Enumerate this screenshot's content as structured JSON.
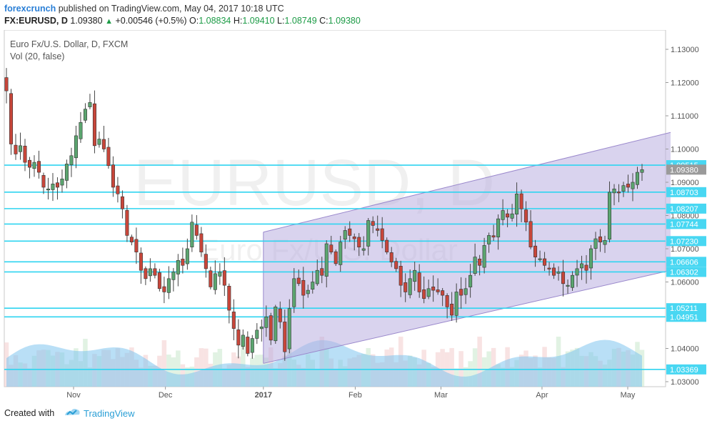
{
  "header": {
    "brand": "forexcrunch",
    "published": "published on TradingView.com, May 04, 2017 10:18 UTC",
    "symbol": "FX:EURUSD, D",
    "last": "1.09380",
    "change": "+0.00546 (+0.5%)",
    "o_label": "O:",
    "o_val": "1.08834",
    "h_label": "H:",
    "h_val": "1.09410",
    "l_label": "L:",
    "l_val": "1.08749",
    "c_label": "C:",
    "c_val": "1.09380"
  },
  "footer": {
    "created": "Created with",
    "brand": "TradingView"
  },
  "colors": {
    "up_body": "#5ba56f",
    "down_body": "#c8463a",
    "level_line": "#2fd4f0",
    "channel_fill": "#b9aee0",
    "channel_line": "#9a88cc",
    "volume": "#7fc4ee",
    "price_badge": "#9a9a9a",
    "level_badge": "#48d7f2"
  },
  "chart_data": {
    "type": "candlestick",
    "title": "Euro Fx/U.S. Dollar, D, FXCM",
    "subtitle": "Vol (20, false)",
    "watermark": "EURUSD, D",
    "watermark_sub": "Euro Fx/U.S. Dollar",
    "y_range": [
      1.025,
      1.135
    ],
    "y_ticks": [
      "1.13000",
      "1.12000",
      "1.11000",
      "1.10000",
      "1.09000",
      "1.08000",
      "1.07000",
      "1.06000",
      "1.04000",
      "1.03000"
    ],
    "x_ticks": [
      {
        "label": "Nov",
        "date": "2016-11-01",
        "bold": false
      },
      {
        "label": "Dec",
        "date": "2016-12-01",
        "bold": false
      },
      {
        "label": "2017",
        "date": "2017-01-02",
        "bold": true
      },
      {
        "label": "Feb",
        "date": "2017-02-01",
        "bold": false
      },
      {
        "label": "Mar",
        "date": "2017-03-01",
        "bold": false
      },
      {
        "label": "Apr",
        "date": "2017-04-03",
        "bold": false
      },
      {
        "label": "May",
        "date": "2017-05-01",
        "bold": false
      }
    ],
    "current_price": "1.09380",
    "levels": [
      "1.09515",
      "1.08703",
      "1.08207",
      "1.07744",
      "1.07230",
      "1.06606",
      "1.06302",
      "1.05211",
      "1.04951",
      "1.03369"
    ],
    "channel": {
      "start_date": "2017-01-02",
      "end_date": "2017-05-15",
      "upper": [
        1.075,
        1.105
      ],
      "lower": [
        1.0355,
        1.0635
      ]
    },
    "closes": [
      1.1175,
      1.1015,
      1.0985,
      1.101,
      1.096,
      1.0945,
      1.096,
      1.093,
      1.0885,
      1.088,
      1.0895,
      1.0885,
      1.091,
      1.0955,
      1.098,
      1.104,
      1.108,
      1.112,
      1.114,
      1.101,
      1.103,
      1.1,
      1.095,
      1.0885,
      1.0865,
      1.082,
      1.074,
      1.072,
      1.069,
      1.0635,
      1.061,
      1.064,
      1.062,
      1.058,
      1.057,
      1.061,
      1.063,
      1.0665,
      1.065,
      1.07,
      1.078,
      1.074,
      1.069,
      1.064,
      1.0585,
      1.0625,
      1.063,
      1.059,
      1.0515,
      1.046,
      1.041,
      1.044,
      1.0385,
      1.043,
      1.0455,
      1.0465,
      1.0495,
      1.0425,
      1.0525,
      1.048,
      1.039,
      1.052,
      1.061,
      1.0595,
      1.056,
      1.0575,
      1.06,
      1.0635,
      1.062,
      1.0715,
      1.069,
      1.0655,
      1.072,
      1.0755,
      1.074,
      1.073,
      1.0705,
      1.07,
      1.0785,
      1.077,
      1.0755,
      1.0725,
      1.069,
      1.066,
      1.064,
      1.059,
      1.057,
      1.061,
      1.0635,
      1.057,
      1.055,
      1.058,
      1.0575,
      1.057,
      1.056,
      1.0525,
      1.05,
      1.057,
      1.056,
      1.058,
      1.062,
      1.0675,
      1.065,
      1.071,
      1.074,
      1.0735,
      1.079,
      1.0815,
      1.0795,
      1.0805,
      1.0865,
      1.082,
      1.078,
      1.0705,
      1.0675,
      1.067,
      1.065,
      1.064,
      1.062,
      1.063,
      1.0595,
      1.059,
      1.062,
      1.064,
      1.0655,
      1.0635,
      1.07,
      1.073,
      1.072,
      1.0725,
      1.087,
      1.088,
      1.087,
      1.089,
      1.0885,
      1.09,
      1.093,
      1.0938
    ],
    "volume_range": [
      0,
      1
    ]
  }
}
